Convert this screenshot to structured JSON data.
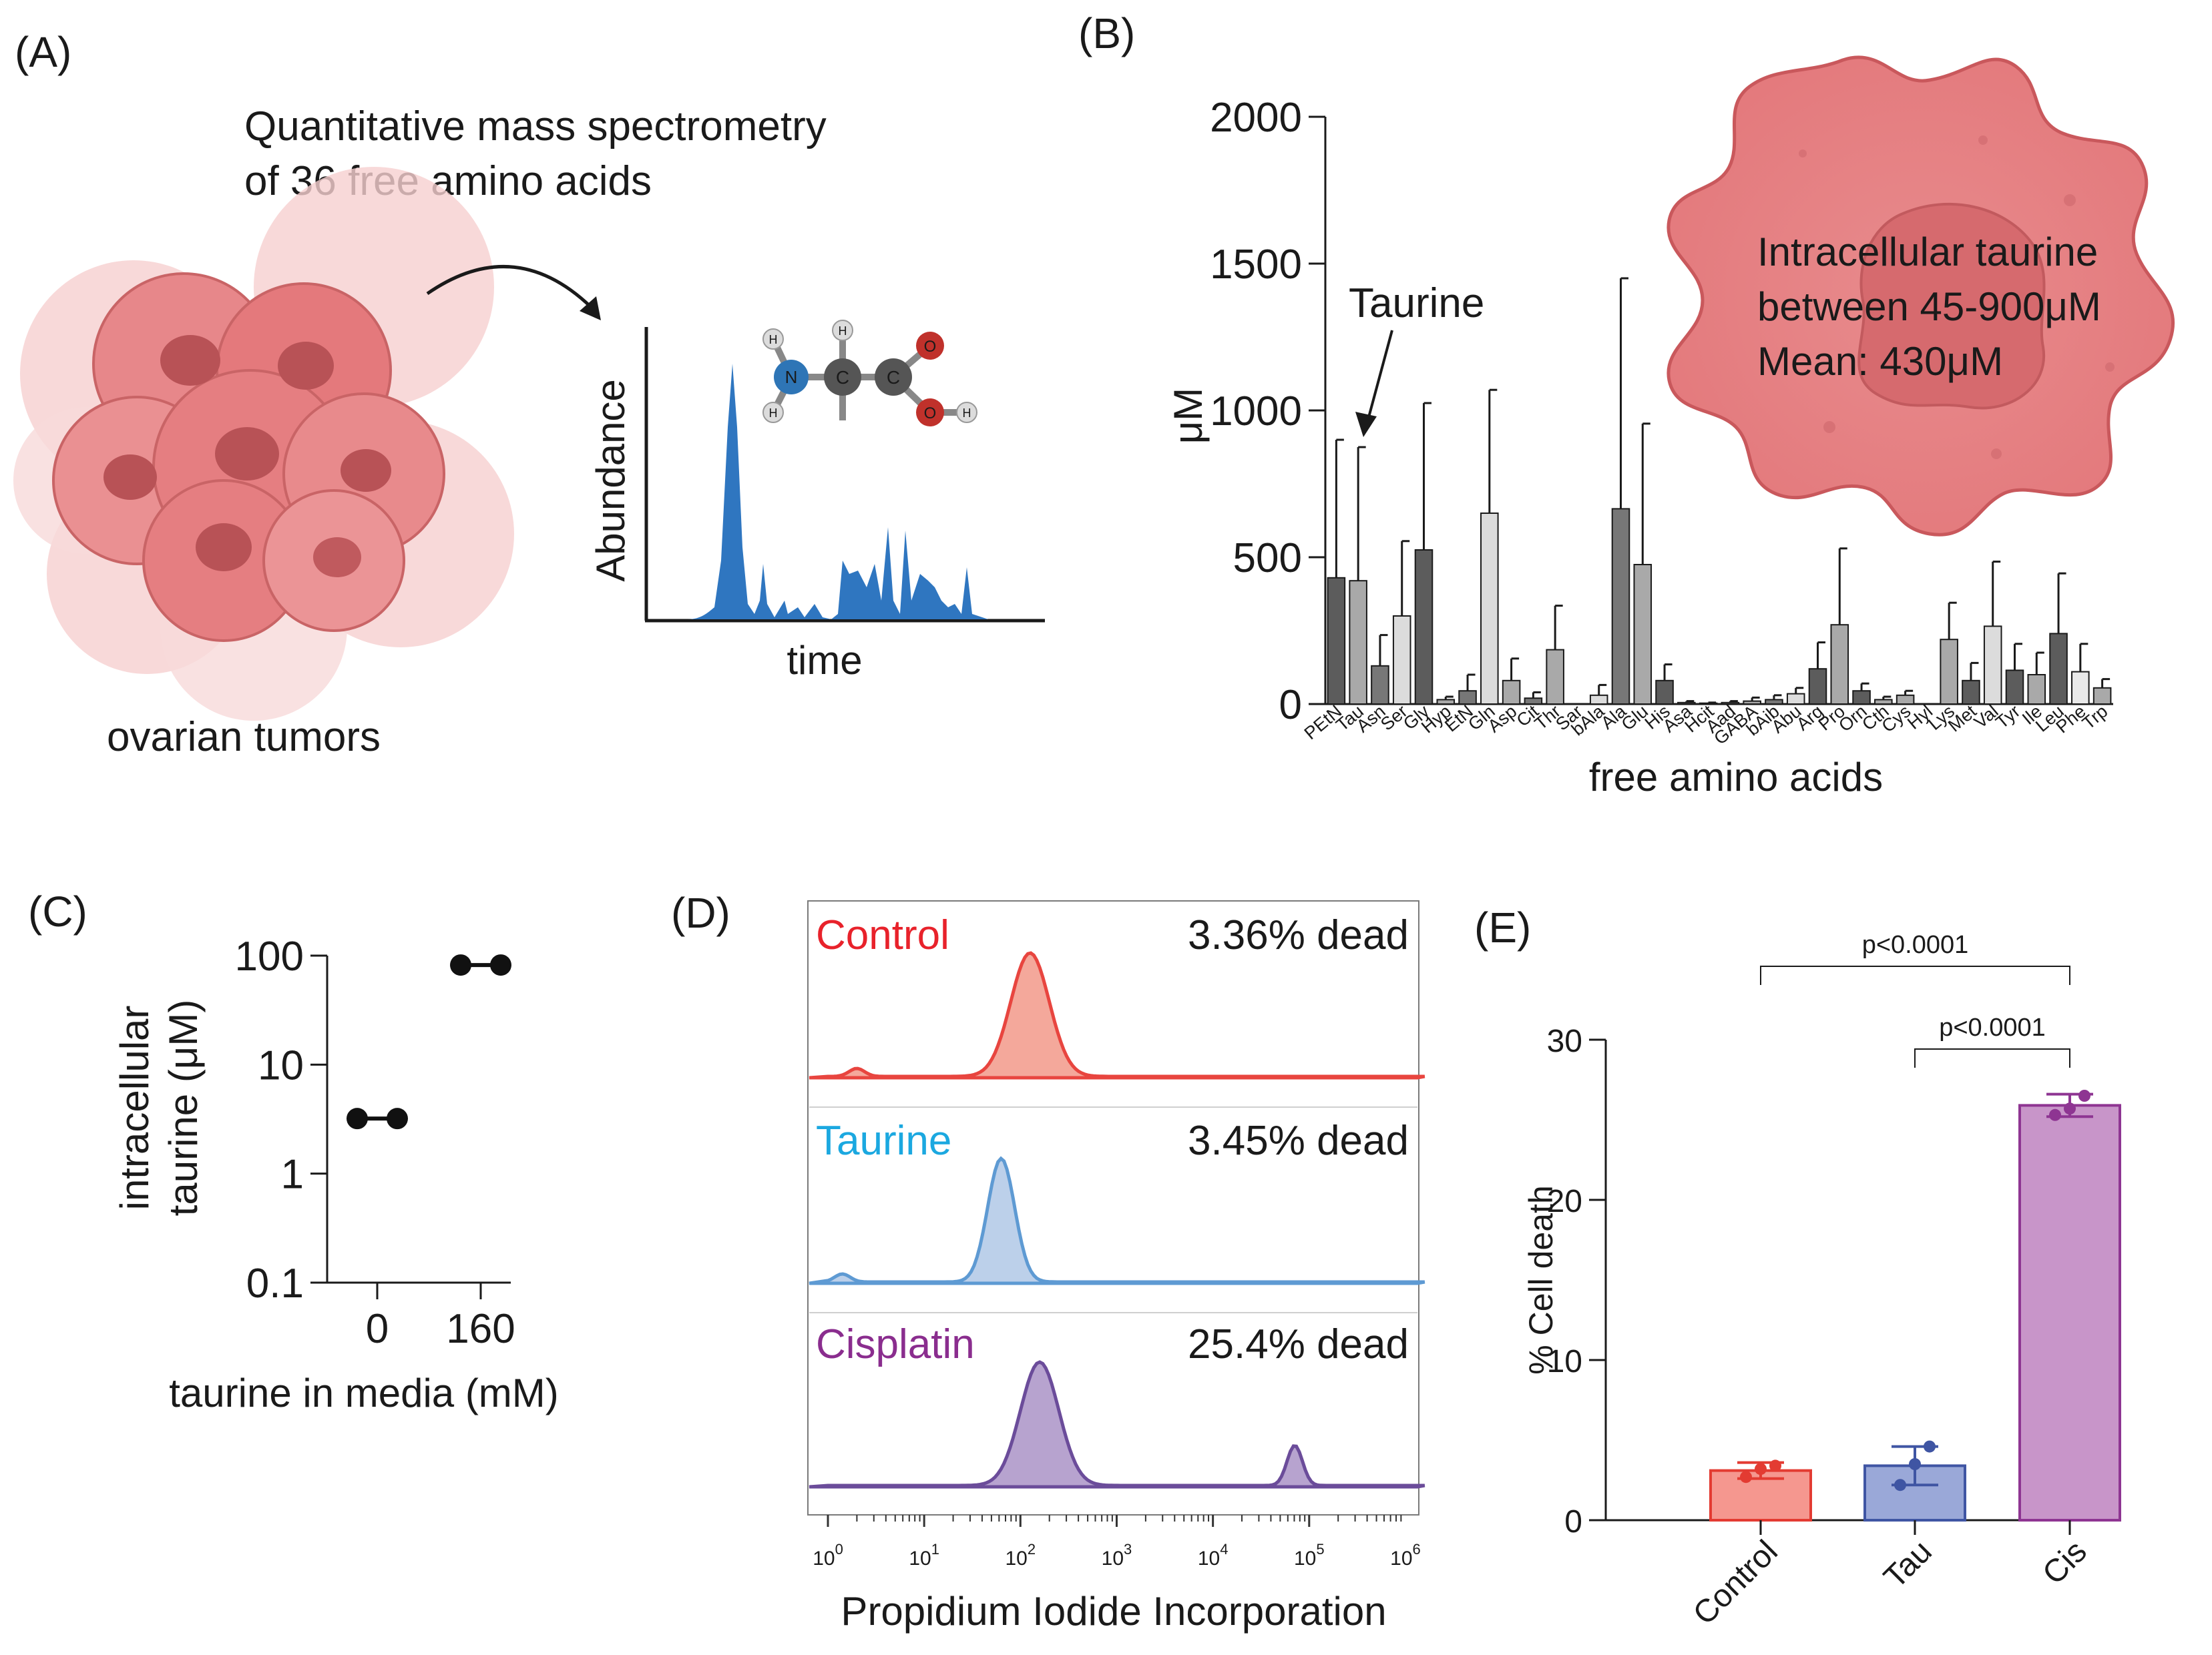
{
  "panelA": {
    "label": "(A)",
    "caption_line1": "Quantitative mass spectrometry",
    "caption_line2": "of 36 free amino acids",
    "tumor_label": "ovarian tumors",
    "ylabel": "Abundance",
    "xlabel": "time",
    "atoms": [
      "H",
      "N",
      "H",
      "C",
      "H",
      "C",
      "O",
      "O",
      "H"
    ]
  },
  "panelB": {
    "label": "(B)",
    "annotation": "Taurine",
    "cell_text": [
      "Intracellular taurine",
      "between 45-900μM",
      "Mean: 430μM"
    ]
  },
  "panelC": {
    "label": "(C)"
  },
  "panelD": {
    "label": "(D)",
    "xlabel": "Propidium Iodide Incorporation",
    "ticks": [
      {
        "base": "10",
        "exp": "0"
      },
      {
        "base": "10",
        "exp": "1"
      },
      {
        "base": "10",
        "exp": "2"
      },
      {
        "base": "10",
        "exp": "3"
      },
      {
        "base": "10",
        "exp": "4"
      },
      {
        "base": "10",
        "exp": "5"
      },
      {
        "base": "10",
        "exp": "6"
      }
    ],
    "rows": [
      {
        "name": "Control",
        "dead": "3.36% dead",
        "color": "#e8222b",
        "fill": "#f4a89b",
        "stroke": "#e8453f",
        "peak": 2.1,
        "peak2": 0.3
      },
      {
        "name": "Taurine",
        "dead": "3.45% dead",
        "color": "#1ba8e0",
        "fill": "#bcd0ea",
        "stroke": "#5e9ad3",
        "peak": 1.8,
        "peak2": 0.15
      },
      {
        "name": "Cisplatin",
        "dead": "25.4% dead",
        "color": "#8a2d8e",
        "fill": "#b7a3cf",
        "stroke": "#6b4c9a",
        "peak": 2.2,
        "peak2": 4.85
      }
    ]
  },
  "panelE": {
    "label": "(E)"
  },
  "chart_data": [
    {
      "type": "bar",
      "id": "B",
      "title": "",
      "xlabel": "free amino acids",
      "ylabel": "μM",
      "ylim": [
        0,
        2000
      ],
      "yticks": [
        "0",
        "500",
        "1000",
        "1500",
        "2000"
      ],
      "categories": [
        "PEtN",
        "Tau",
        "Asn",
        "Ser",
        "Gly",
        "Hyp",
        "EtN",
        "Gln",
        "Asp",
        "Cit",
        "Thr",
        "Sar",
        "bAla",
        "Ala",
        "Glu",
        "His",
        "Asa",
        "Hcit",
        "Aad",
        "GABA",
        "bAib",
        "Abu",
        "Arg",
        "Pro",
        "Orn",
        "Cth",
        "Cys",
        "Hyl",
        "Lys",
        "Met",
        "Val",
        "Tyr",
        "Ile",
        "Leu",
        "Phe",
        "Trp"
      ],
      "values": [
        430,
        420,
        130,
        300,
        525,
        15,
        45,
        650,
        80,
        20,
        185,
        0,
        30,
        665,
        475,
        80,
        5,
        3,
        5,
        10,
        15,
        35,
        120,
        270,
        45,
        15,
        30,
        0,
        220,
        80,
        265,
        115,
        100,
        240,
        110,
        55
      ],
      "errors": [
        470,
        455,
        105,
        255,
        500,
        10,
        55,
        420,
        75,
        20,
        150,
        0,
        35,
        785,
        480,
        55,
        5,
        2,
        5,
        12,
        15,
        20,
        90,
        260,
        25,
        10,
        15,
        0,
        125,
        60,
        220,
        90,
        75,
        205,
        95,
        30
      ],
      "shades": [
        "#5c5c5c",
        "#a9a9a9",
        "#777777",
        "#dcdcdc",
        "#5c5c5c",
        "#a9a9a9",
        "#777777",
        "#dcdcdc",
        "#a9a9a9",
        "#777777",
        "#a9a9a9",
        "#dcdcdc",
        "#dcdcdc",
        "#777777",
        "#a9a9a9",
        "#5c5c5c",
        "#a9a9a9",
        "#777777",
        "#dcdcdc",
        "#a9a9a9",
        "#777777",
        "#dcdcdc",
        "#5c5c5c",
        "#a9a9a9",
        "#5c5c5c",
        "#a9a9a9",
        "#a9a9a9",
        "#dcdcdc",
        "#a9a9a9",
        "#5c5c5c",
        "#dcdcdc",
        "#5c5c5c",
        "#a9a9a9",
        "#5c5c5c",
        "#e9e9e9",
        "#a9a9a9"
      ]
    },
    {
      "type": "scatter",
      "id": "C",
      "xlabel": "taurine in media (mM)",
      "ylabel_line1": "intracellular",
      "ylabel_line2": "taurine (μM)",
      "yscale": "log",
      "ylim": [
        0.1,
        100
      ],
      "yticks": [
        {
          "label": "100",
          "value": 100
        },
        {
          "label": "10",
          "value": 10
        },
        {
          "label": "1",
          "value": 1
        },
        {
          "label": "0.1",
          "value": 0.1
        }
      ],
      "categories": [
        "0",
        "160"
      ],
      "series": [
        {
          "name": "0",
          "values": [
            3.2,
            3.2
          ]
        },
        {
          "name": "160",
          "values": [
            82,
            82
          ]
        }
      ]
    },
    {
      "type": "bar",
      "id": "E",
      "xlabel": "",
      "ylabel": "% Cell death",
      "ylim": [
        0,
        30
      ],
      "yticks": [
        "0",
        "10",
        "20",
        "30"
      ],
      "categories": [
        "Control",
        "Tau",
        "Cis"
      ],
      "values": [
        3.1,
        3.4,
        25.9
      ],
      "errors": [
        0.5,
        1.2,
        0.7
      ],
      "points": [
        [
          2.7,
          3.2,
          3.4
        ],
        [
          2.2,
          3.5,
          4.6
        ],
        [
          25.3,
          25.7,
          26.5
        ]
      ],
      "colors": [
        {
          "fill": "#f5978f",
          "stroke": "#e33b32",
          "dot": "#e33b32"
        },
        {
          "fill": "#9aa8d8",
          "stroke": "#3f55a3",
          "dot": "#3f55a3"
        },
        {
          "fill": "#c895c9",
          "stroke": "#8e3592",
          "dot": "#8e3592"
        }
      ],
      "significance": [
        {
          "from": 0,
          "to": 2,
          "label": "p<0.0001"
        },
        {
          "from": 1,
          "to": 2,
          "label": "p<0.0001"
        }
      ]
    }
  ]
}
